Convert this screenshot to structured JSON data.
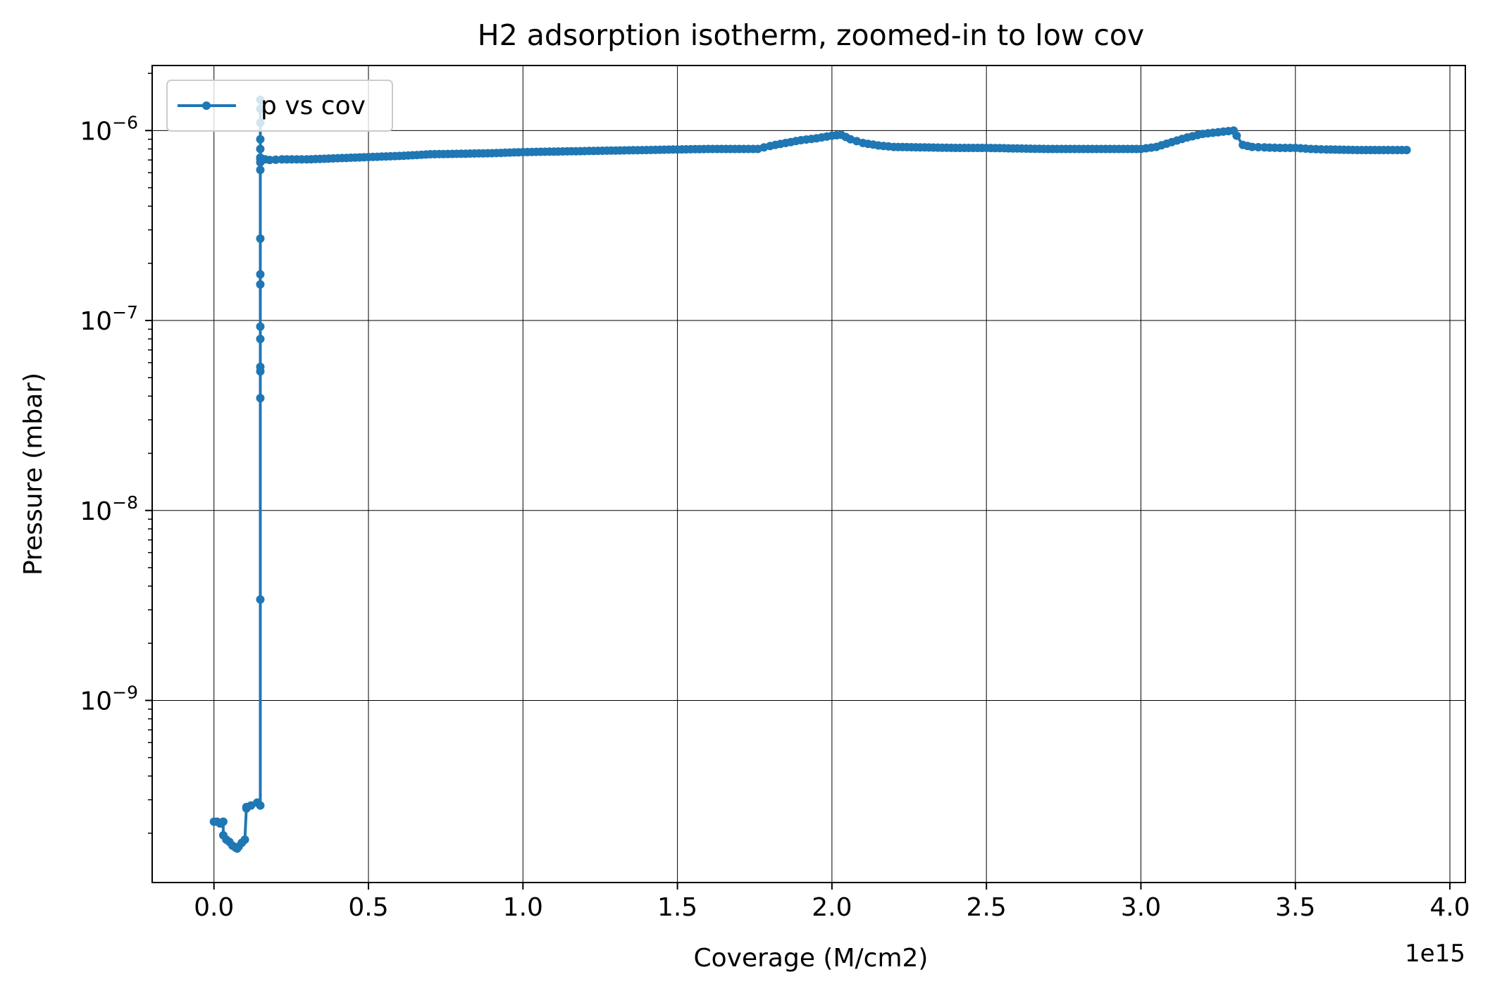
{
  "chart_data": {
    "type": "line",
    "title": "H2 adsorption isotherm, zoomed-in to low cov",
    "xlabel": "Coverage (M/cm2)",
    "ylabel": "Pressure (mbar)",
    "x_offset_label": "1e15",
    "xlim": [
      -0.2,
      4.05
    ],
    "ylim": [
      1.1e-10,
      2.2e-06
    ],
    "yscale": "log",
    "grid": true,
    "legend_position": "top-left",
    "x_ticks": [
      0.0,
      0.5,
      1.0,
      1.5,
      2.0,
      2.5,
      3.0,
      3.5,
      4.0
    ],
    "x_tick_labels": [
      "0.0",
      "0.5",
      "1.0",
      "1.5",
      "2.0",
      "2.5",
      "3.0",
      "3.5",
      "4.0"
    ],
    "y_major_ticks": [
      {
        "value": 1e-09,
        "base": "10",
        "exp": "−9"
      },
      {
        "value": 1e-08,
        "base": "10",
        "exp": "−8"
      },
      {
        "value": 1e-07,
        "base": "10",
        "exp": "−7"
      },
      {
        "value": 1e-06,
        "base": "10",
        "exp": "−6"
      }
    ],
    "series": [
      {
        "name": "p vs cov",
        "color": "#1f77b4",
        "x": [
          0.0,
          0.01,
          0.02,
          0.03,
          0.03,
          0.04,
          0.05,
          0.06,
          0.07,
          0.075,
          0.08,
          0.09,
          0.1,
          0.105,
          0.105,
          0.12,
          0.14,
          0.15,
          0.15,
          0.15,
          0.15,
          0.15,
          0.15,
          0.15,
          0.15,
          0.15,
          0.15,
          0.15,
          0.15,
          0.15,
          0.15,
          0.15,
          0.15,
          0.15,
          0.15,
          0.15,
          0.18,
          0.22,
          0.3,
          0.4,
          0.5,
          0.6,
          0.7,
          0.8,
          0.9,
          1.0,
          1.1,
          1.2,
          1.3,
          1.4,
          1.5,
          1.6,
          1.7,
          1.76,
          1.8,
          1.85,
          1.9,
          1.95,
          2.0,
          2.03,
          2.06,
          2.1,
          2.15,
          2.2,
          2.3,
          2.4,
          2.5,
          2.6,
          2.7,
          2.8,
          2.9,
          3.0,
          3.05,
          3.1,
          3.15,
          3.2,
          3.25,
          3.3,
          3.31,
          3.33,
          3.36,
          3.4,
          3.45,
          3.5,
          3.55,
          3.6,
          3.7,
          3.8,
          3.86
        ],
        "y": [
          2.3e-10,
          2.3e-10,
          2.25e-10,
          2.3e-10,
          1.95e-10,
          1.85e-10,
          1.8e-10,
          1.72e-10,
          1.68e-10,
          1.66e-10,
          1.7e-10,
          1.78e-10,
          1.85e-10,
          2.75e-10,
          2.7e-10,
          2.8e-10,
          2.9e-10,
          2.8e-10,
          3.4e-09,
          3.9e-08,
          5.4e-08,
          5.7e-08,
          8e-08,
          9.3e-08,
          1.55e-07,
          1.75e-07,
          2.7e-07,
          6.2e-07,
          6.8e-07,
          7.2e-07,
          8e-07,
          9e-07,
          1.1e-06,
          1.3e-06,
          1.45e-06,
          7.1e-07,
          7e-07,
          7.05e-07,
          7.05e-07,
          7.15e-07,
          7.25e-07,
          7.35e-07,
          7.5e-07,
          7.55e-07,
          7.6e-07,
          7.7e-07,
          7.75e-07,
          7.8e-07,
          7.85e-07,
          7.9e-07,
          7.95e-07,
          8e-07,
          8e-07,
          8e-07,
          8.3e-07,
          8.6e-07,
          8.9e-07,
          9.1e-07,
          9.4e-07,
          9.5e-07,
          9e-07,
          8.6e-07,
          8.35e-07,
          8.2e-07,
          8.15e-07,
          8.1e-07,
          8.1e-07,
          8.05e-07,
          8e-07,
          8e-07,
          8e-07,
          8e-07,
          8.2e-07,
          8.7e-07,
          9.2e-07,
          9.6e-07,
          9.8e-07,
          1e-06,
          9.4e-07,
          8.4e-07,
          8.2e-07,
          8.15e-07,
          8.1e-07,
          8.1e-07,
          8e-07,
          7.95e-07,
          7.9e-07,
          7.9e-07,
          7.9e-07
        ]
      }
    ]
  }
}
